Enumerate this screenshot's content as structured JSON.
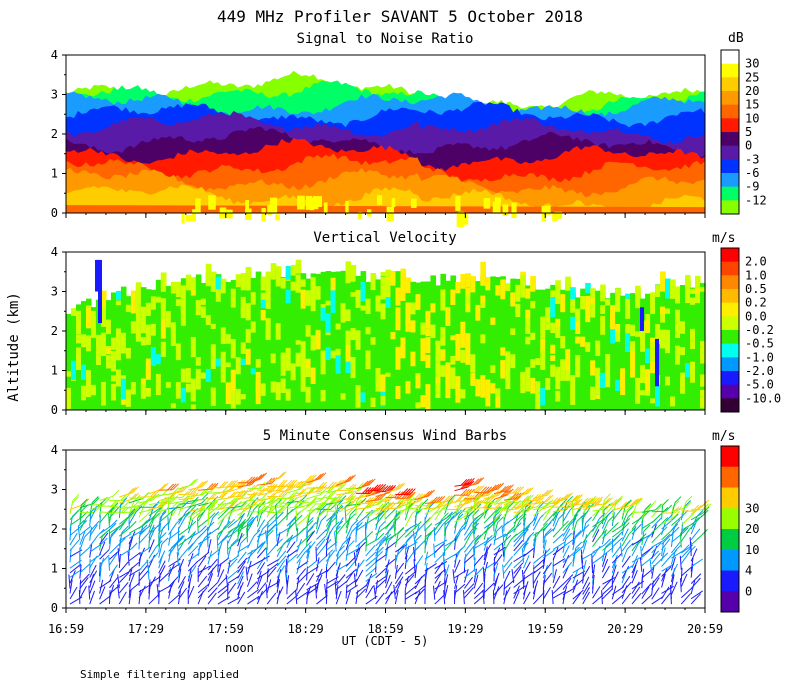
{
  "title": "449 MHz Profiler SAVANT  5 October 2018",
  "y_axis_label": "Altitude (km)",
  "x_axis_label": "UT  (CDT - 5)",
  "footnote": "Simple filtering applied",
  "noon_label": "noon",
  "x_ticks": [
    "16:59",
    "17:29",
    "17:59",
    "18:29",
    "18:59",
    "19:29",
    "19:59",
    "20:29",
    "20:59"
  ],
  "chart_data": [
    {
      "type": "heatmap",
      "title": "Signal to Noise Ratio",
      "units": "dB",
      "ylim": [
        0,
        4
      ],
      "yticks": [
        "0",
        "1",
        "2",
        "3",
        "4"
      ],
      "x": [
        "16:59",
        "17:29",
        "17:59",
        "18:29",
        "18:59",
        "19:29",
        "19:59",
        "20:29",
        "20:59"
      ],
      "colorbar": {
        "labels": [
          "30",
          "25",
          "20",
          "15",
          "10",
          "5",
          "0",
          "-3",
          "-6",
          "-9",
          "-12"
        ],
        "colors": [
          "#ffffff",
          "#ffff00",
          "#ffcc00",
          "#ff9900",
          "#ff6600",
          "#ff1a00",
          "#4d0066",
          "#5a1aa8",
          "#0033ff",
          "#1a9cff",
          "#00ff66",
          "#88ff00"
        ]
      },
      "layer_tops_km": [
        0.45,
        0.85,
        1.2,
        1.55,
        1.85,
        2.25,
        2.5,
        2.75,
        2.9,
        3.05
      ]
    },
    {
      "type": "heatmap",
      "title": "Vertical Velocity",
      "units": "m/s",
      "ylim": [
        0,
        4
      ],
      "yticks": [
        "0",
        "1",
        "2",
        "3",
        "4"
      ],
      "x": [
        "16:59",
        "17:29",
        "17:59",
        "18:29",
        "18:59",
        "19:29",
        "19:59",
        "20:29",
        "20:59"
      ],
      "colorbar": {
        "labels": [
          "2.0",
          "1.0",
          "0.5",
          "0.2",
          "0.0",
          "-0.2",
          "-0.5",
          "-1.0",
          "-2.0",
          "-5.0",
          "-10.0"
        ],
        "colors": [
          "#ff0000",
          "#ff4400",
          "#ff8800",
          "#ffbb00",
          "#ffee00",
          "#ccff00",
          "#33ee00",
          "#00ffee",
          "#0099ff",
          "#1a1aff",
          "#5500aa",
          "#330033"
        ]
      },
      "data_top_km": [
        2.5,
        3.2,
        3.3,
        3.4,
        3.35,
        3.3,
        3.1,
        2.9,
        3.3
      ]
    },
    {
      "type": "scatter",
      "title": "5 Minute Consensus Wind Barbs",
      "units": "m/s",
      "ylim": [
        0,
        4
      ],
      "yticks": [
        "0",
        "1",
        "2",
        "3",
        "4"
      ],
      "x": [
        "16:59",
        "17:29",
        "17:59",
        "18:29",
        "18:59",
        "19:29",
        "19:59",
        "20:29",
        "20:59"
      ],
      "colorbar": {
        "labels": [
          "30",
          "20",
          "10",
          "4",
          "0"
        ],
        "colors": [
          "#ff0000",
          "#ff6600",
          "#ffcc00",
          "#99ff00",
          "#00cc44",
          "#0099ff",
          "#1a1aff",
          "#5500aa"
        ]
      },
      "wind_speed_profile": [
        {
          "altitude_km": 0.5,
          "speed_ms": 3
        },
        {
          "altitude_km": 1.0,
          "speed_ms": 4
        },
        {
          "altitude_km": 1.5,
          "speed_ms": 5
        },
        {
          "altitude_km": 2.0,
          "speed_ms": 6
        },
        {
          "altitude_km": 2.3,
          "speed_ms": 8
        },
        {
          "altitude_km": 2.6,
          "speed_ms": 15
        },
        {
          "altitude_km": 3.0,
          "speed_ms": 25
        },
        {
          "altitude_km": 3.5,
          "speed_ms": 28
        }
      ]
    }
  ]
}
